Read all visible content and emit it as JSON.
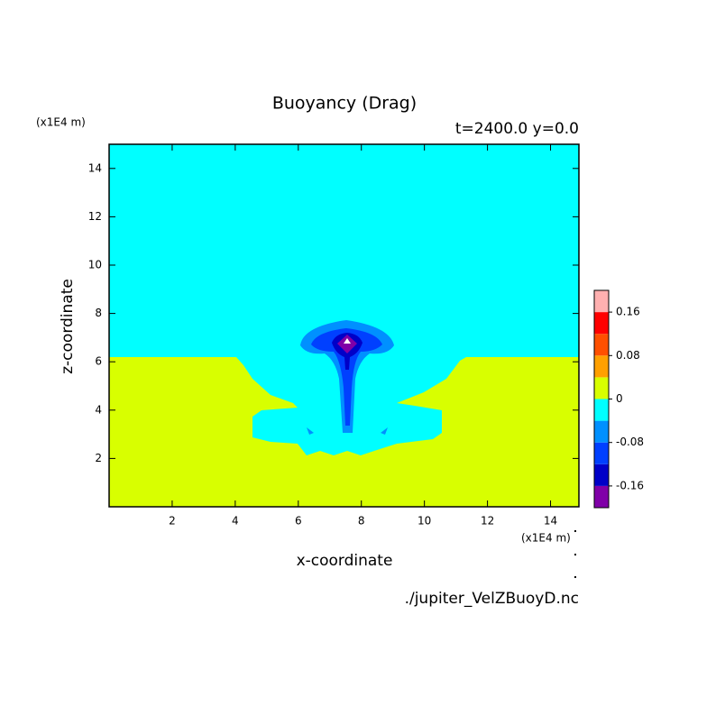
{
  "chart_data": {
    "type": "contour",
    "title": "Buoyancy (Drag)",
    "subtitle": "t=2400.0 y=0.0",
    "x_label": "x-coordinate",
    "y_label": "z-coordinate",
    "x_unit": "(x1E4 m)",
    "y_unit": "(x1E4 m)",
    "source": "./jupiter_VelZBuoyD.nc",
    "xlim": [
      0,
      14.9
    ],
    "xticks": [
      2,
      4,
      6,
      8,
      10,
      12,
      14
    ],
    "ylim": [
      0,
      15
    ],
    "yticks": [
      2,
      4,
      6,
      8,
      10,
      12,
      14
    ],
    "levels": [
      -0.2,
      -0.16,
      -0.12,
      -0.08,
      -0.04,
      0,
      0.04,
      0.08,
      0.12,
      0.16,
      0.2
    ],
    "level_colors": [
      "#8000a8",
      "#0000c8",
      "#0040ff",
      "#0090ff",
      "#00ffff",
      "#d8ff00",
      "#ffa000",
      "#ff5000",
      "#ff0000",
      "#ffb0b0"
    ],
    "colorbar_ticks": [
      -0.16,
      -0.08,
      0,
      0.08,
      0.16
    ]
  }
}
